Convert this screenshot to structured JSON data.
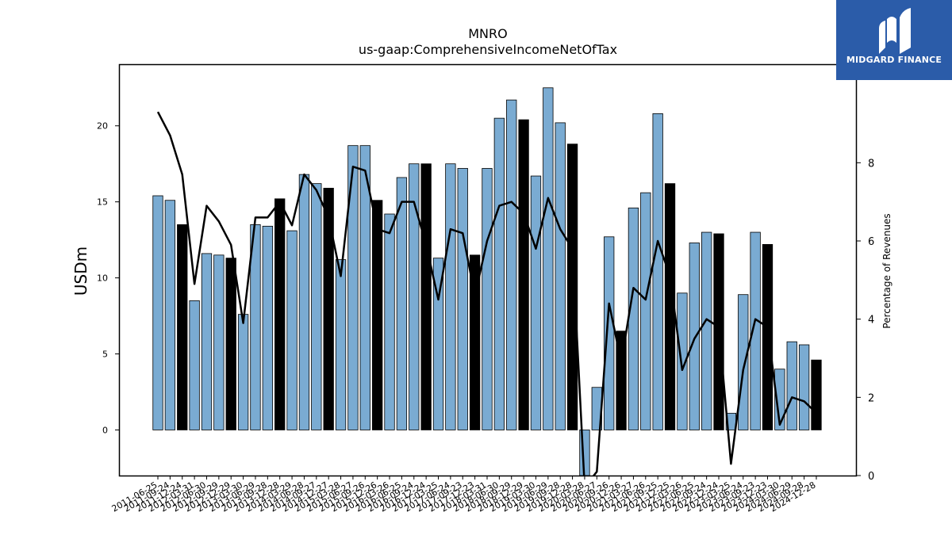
{
  "chart_data": {
    "type": "bar",
    "title": "MNRO",
    "subtitle": "us-gaap:ComprehensiveIncomeNetOfTax",
    "ylabel": "USDm",
    "y2label": "Percentage of Revenues",
    "ylim": [
      -3,
      24
    ],
    "y2lim": [
      0,
      10.5
    ],
    "yticks": [
      0,
      5,
      10,
      15,
      20
    ],
    "y2ticks": [
      0,
      2,
      4,
      6,
      8
    ],
    "categories": [
      "2011-06-25",
      "2011-09-24",
      "2011-12-24",
      "2012-03-31",
      "2012-06-30",
      "2012-09-29",
      "2012-12-29",
      "2013-03-30",
      "2013-06-29",
      "2013-09-28",
      "2013-12-28",
      "2014-03-29",
      "2014-06-28",
      "2014-09-27",
      "2014-12-27",
      "2015-03-28",
      "2015-06-27",
      "2015-09-26",
      "2015-12-26",
      "2016-03-26",
      "2016-06-25",
      "2016-09-24",
      "2016-12-24",
      "2017-03-25",
      "2017-06-24",
      "2017-09-23",
      "2017-12-23",
      "2018-03-31",
      "2018-06-30",
      "2018-09-29",
      "2018-12-29",
      "2019-03-30",
      "2019-06-29",
      "2019-09-28",
      "2019-12-28",
      "2020-03-28",
      "2020-06-27",
      "2020-09-26",
      "2020-12-26",
      "2021-03-27",
      "2021-06-26",
      "2021-09-25",
      "2021-12-25",
      "2022-03-26",
      "2022-06-25",
      "2022-09-24",
      "2022-12-24",
      "2023-03-25",
      "2023-06-24",
      "2023-09-23",
      "2023-12-23",
      "2024-03-30",
      "2024-06-29",
      "2024-09-28",
      "2024-12-28"
    ],
    "values": [
      15.4,
      15.1,
      13.5,
      8.5,
      11.6,
      11.5,
      11.3,
      7.6,
      13.5,
      13.4,
      15.2,
      13.1,
      16.8,
      16.2,
      15.9,
      11.2,
      18.7,
      18.7,
      15.1,
      14.2,
      16.6,
      17.5,
      17.5,
      11.3,
      17.5,
      17.2,
      11.5,
      17.2,
      20.5,
      21.7,
      20.4,
      16.7,
      22.5,
      20.2,
      18.8,
      -3.0,
      2.8,
      12.7,
      6.5,
      14.6,
      15.6,
      20.8,
      16.2,
      9.0,
      12.3,
      13.0,
      12.9,
      1.1,
      8.9,
      13.0,
      12.2,
      4.0,
      5.8,
      5.6,
      4.6
    ],
    "highlight": [
      false,
      false,
      true,
      false,
      false,
      false,
      true,
      false,
      false,
      false,
      true,
      false,
      false,
      false,
      true,
      false,
      false,
      false,
      true,
      false,
      false,
      false,
      true,
      false,
      false,
      false,
      true,
      false,
      false,
      false,
      true,
      false,
      false,
      false,
      true,
      false,
      false,
      false,
      true,
      false,
      false,
      false,
      true,
      false,
      false,
      false,
      true,
      false,
      false,
      false,
      true,
      false,
      false,
      false,
      true
    ],
    "series": [
      {
        "name": "",
        "axis": "right",
        "type": "line",
        "values": [
          9.3,
          8.7,
          7.7,
          4.9,
          6.9,
          6.5,
          5.9,
          3.9,
          6.6,
          6.6,
          7.0,
          6.4,
          7.7,
          7.3,
          6.6,
          5.1,
          7.9,
          7.8,
          6.3,
          6.2,
          7.0,
          7.0,
          5.9,
          4.5,
          6.3,
          6.2,
          4.6,
          6.0,
          6.9,
          7.0,
          6.7,
          5.8,
          7.1,
          6.3,
          5.8,
          -0.3,
          0.1,
          4.4,
          2.9,
          4.8,
          4.5,
          6.0,
          5.1,
          2.7,
          3.5,
          4.0,
          3.8,
          0.3,
          2.7,
          4.0,
          3.8,
          1.3,
          2.0,
          1.9,
          1.6
        ]
      }
    ]
  },
  "logo": {
    "text": "MIDGARD FINANCE"
  }
}
